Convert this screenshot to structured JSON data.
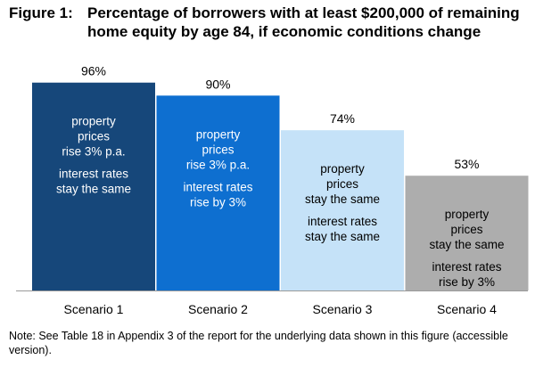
{
  "figure": {
    "label": "Figure 1:",
    "title_lines": [
      "Percentage of borrowers with at least $200,000 of remaining",
      "home equity by age 84, if economic conditions change"
    ]
  },
  "note": "Note: See Table 18 in Appendix 3 of the report for the underlying data shown in this figure (accessible version).",
  "chart_data": {
    "type": "bar",
    "title": "Percentage of borrowers with at least $200,000 of remaining home equity by age 84, if economic conditions change",
    "categories": [
      "Scenario 1",
      "Scenario 2",
      "Scenario 3",
      "Scenario 4"
    ],
    "values": [
      96,
      90,
      74,
      53
    ],
    "value_labels": [
      "96%",
      "90%",
      "74%",
      "53%"
    ],
    "ylim": [
      0,
      100
    ],
    "grid": false,
    "legend": "none",
    "bar_colors": [
      "#16477a",
      "#0e6fd0",
      "#c5e2f8",
      "#adadad"
    ],
    "bar_text_colors": [
      "#ffffff",
      "#ffffff",
      "#000000",
      "#000000"
    ],
    "annotations": [
      [
        [
          "property",
          "prices",
          "rise 3% p.a."
        ],
        [
          "interest rates",
          "stay the same"
        ]
      ],
      [
        [
          "property",
          "prices",
          "rise 3% p.a."
        ],
        [
          "interest rates",
          "rise by 3%"
        ]
      ],
      [
        [
          "property",
          "prices",
          "stay the same"
        ],
        [
          "interest rates",
          "stay the same"
        ]
      ],
      [
        [
          "property",
          "prices",
          "stay the same"
        ],
        [
          "interest rates",
          "rise by 3%"
        ]
      ]
    ]
  }
}
